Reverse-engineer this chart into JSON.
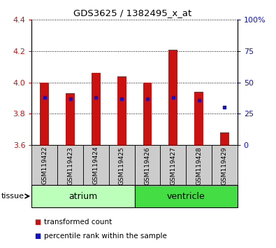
{
  "title": "GDS3625 / 1382495_x_at",
  "samples": [
    "GSM119422",
    "GSM119423",
    "GSM119424",
    "GSM119425",
    "GSM119426",
    "GSM119427",
    "GSM119428",
    "GSM119429"
  ],
  "transformed_counts": [
    4.0,
    3.93,
    4.06,
    4.04,
    4.0,
    4.21,
    3.94,
    3.68
  ],
  "percentile_ranks": [
    38,
    37,
    38,
    37,
    37,
    38,
    36,
    30
  ],
  "ylim_left": [
    3.6,
    4.4
  ],
  "ylim_right": [
    0,
    100
  ],
  "yticks_left": [
    3.6,
    3.8,
    4.0,
    4.2,
    4.4
  ],
  "yticks_right": [
    0,
    25,
    50,
    75,
    100
  ],
  "bar_color": "#cc1111",
  "dot_color": "#1111cc",
  "bar_width": 0.35,
  "bar_bottom": 3.6,
  "groups": [
    {
      "label": "atrium",
      "start": 0,
      "end": 3,
      "color": "#bbffbb"
    },
    {
      "label": "ventricle",
      "start": 4,
      "end": 7,
      "color": "#44dd44"
    }
  ],
  "tissue_label": "tissue",
  "xlabel_bg": "#cccccc",
  "legend_items": [
    {
      "label": "transformed count",
      "color": "#cc1111"
    },
    {
      "label": "percentile rank within the sample",
      "color": "#1111cc"
    }
  ]
}
